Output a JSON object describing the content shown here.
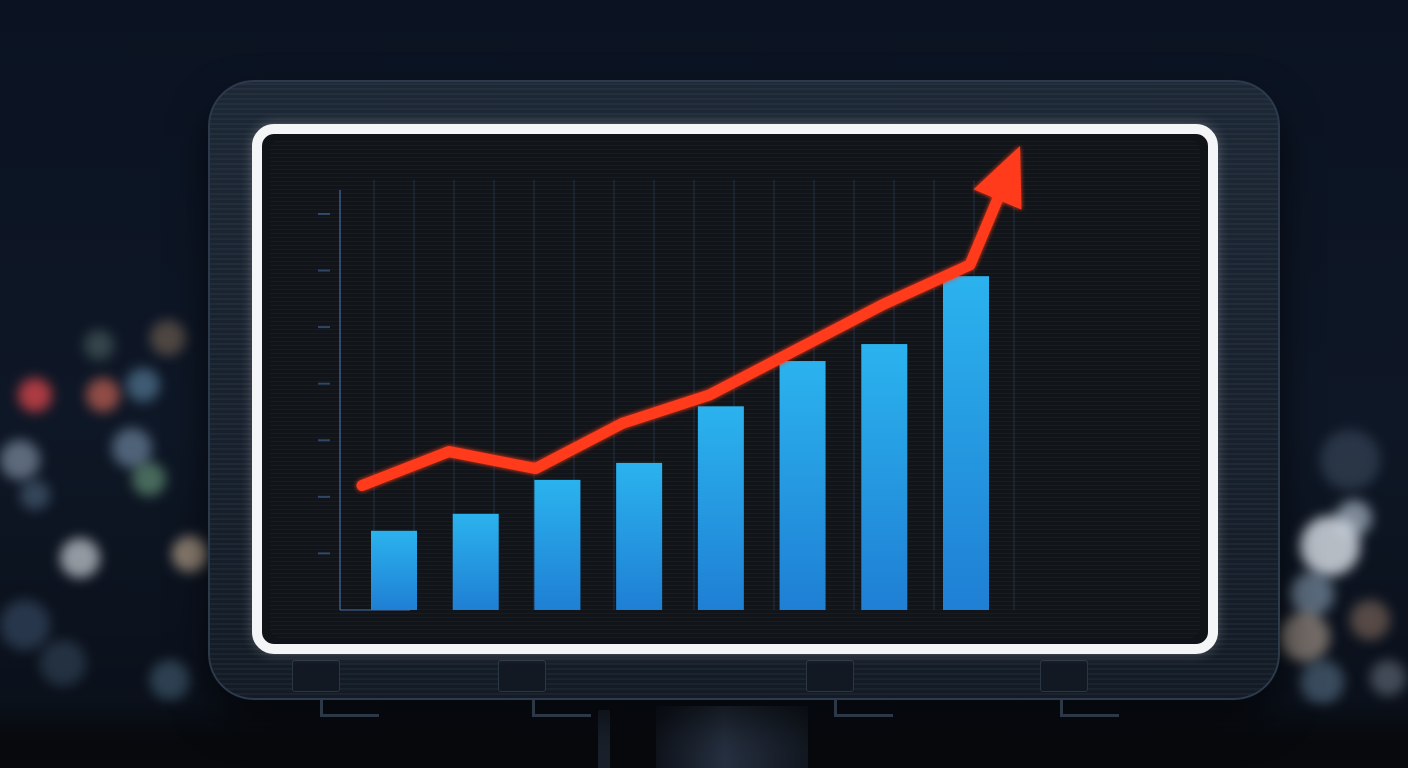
{
  "scene": {
    "background_color": "#0b1220",
    "frame_color": "#1d2836",
    "screen_border_color": "#f4f5f6",
    "screen_color": "#111418"
  },
  "chart_data": {
    "type": "bar",
    "categories": [
      "",
      "",
      "",
      "",
      "",
      "",
      "",
      ""
    ],
    "values": [
      1.4,
      1.7,
      2.3,
      2.6,
      3.6,
      4.4,
      4.7,
      5.9
    ],
    "trend_line": [
      2.2,
      2.8,
      2.5,
      3.3,
      3.8,
      4.6,
      5.4,
      6.1,
      8.2
    ],
    "ylim": [
      0,
      7.6
    ],
    "title": "",
    "xlabel": "",
    "ylabel": "",
    "grid": "vertical",
    "colors": {
      "bar_top": "#2bb3ee",
      "bar_bottom": "#1f7fd4",
      "trend": "#ff3a1f",
      "grid": "#4c79b8"
    }
  }
}
